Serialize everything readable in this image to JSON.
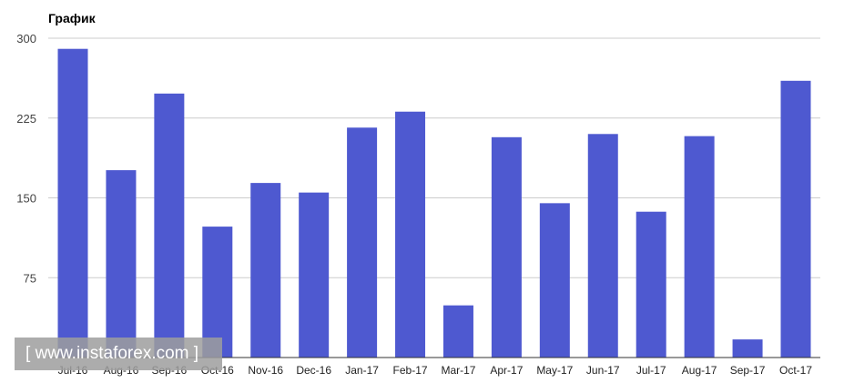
{
  "chart_data": {
    "type": "bar",
    "title": "График",
    "categories": [
      "Jul-16",
      "Aug-16",
      "Sep-16",
      "Oct-16",
      "Nov-16",
      "Dec-16",
      "Jan-17",
      "Feb-17",
      "Mar-17",
      "Apr-17",
      "May-17",
      "Jun-17",
      "Jul-17",
      "Aug-17",
      "Sep-17",
      "Oct-17"
    ],
    "values": [
      290,
      176,
      248,
      123,
      164,
      155,
      216,
      231,
      49,
      207,
      145,
      210,
      137,
      208,
      17,
      260
    ],
    "ylim": [
      0,
      300
    ],
    "yticks": [
      "75",
      "150",
      "225",
      "300"
    ],
    "xlabel": "",
    "ylabel": "",
    "grid": true,
    "bar_color": "#4e59d0"
  },
  "watermark": {
    "text": "www.instaforex.com"
  }
}
